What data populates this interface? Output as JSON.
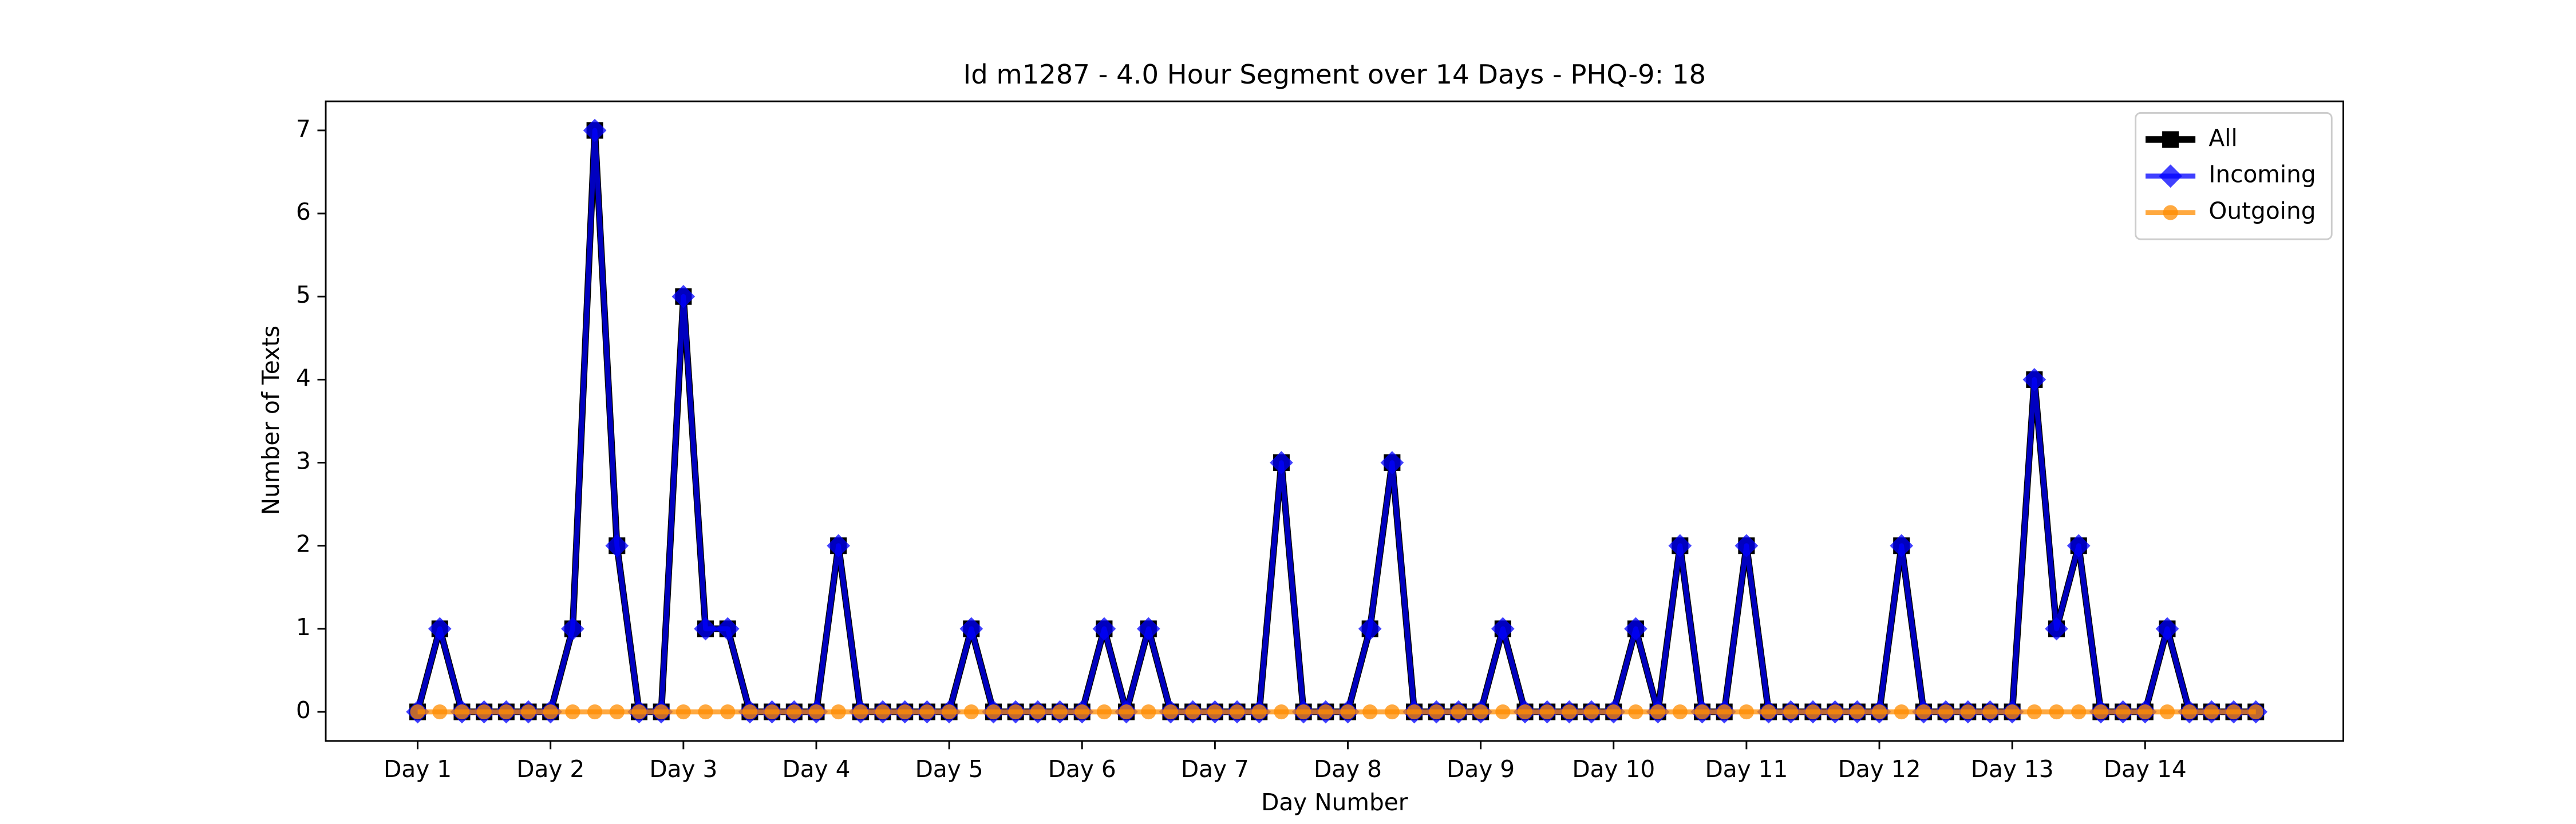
{
  "chart_data": {
    "type": "line",
    "title": "Id m1287 - 4.0 Hour Segment over 14 Days - PHQ-9: 18",
    "xlabel": "Day Number",
    "ylabel": "Number of Texts",
    "x": [
      0,
      1,
      2,
      3,
      4,
      5,
      6,
      7,
      8,
      9,
      10,
      11,
      12,
      13,
      14,
      15,
      16,
      17,
      18,
      19,
      20,
      21,
      22,
      23,
      24,
      25,
      26,
      27,
      28,
      29,
      30,
      31,
      32,
      33,
      34,
      35,
      36,
      37,
      38,
      39,
      40,
      41,
      42,
      43,
      44,
      45,
      46,
      47,
      48,
      49,
      50,
      51,
      52,
      53,
      54,
      55,
      56,
      57,
      58,
      59,
      60,
      61,
      62,
      63,
      64,
      65,
      66,
      67,
      68,
      69,
      70,
      71,
      72,
      73,
      74,
      75,
      76,
      77,
      78,
      79,
      80,
      81,
      82,
      83
    ],
    "series": [
      {
        "name": "All",
        "color": "#000000",
        "marker": "square",
        "values": [
          0,
          1,
          0,
          0,
          0,
          0,
          0,
          1,
          7,
          2,
          0,
          0,
          5,
          1,
          1,
          0,
          0,
          0,
          0,
          2,
          0,
          0,
          0,
          0,
          0,
          1,
          0,
          0,
          0,
          0,
          0,
          1,
          0,
          1,
          0,
          0,
          0,
          0,
          0,
          3,
          0,
          0,
          0,
          1,
          3,
          0,
          0,
          0,
          0,
          1,
          0,
          0,
          0,
          0,
          0,
          1,
          0,
          2,
          0,
          0,
          2,
          0,
          0,
          0,
          0,
          0,
          0,
          2,
          0,
          0,
          0,
          0,
          0,
          4,
          1,
          2,
          0,
          0,
          0,
          1,
          0,
          0,
          0,
          0
        ]
      },
      {
        "name": "Incoming",
        "color": "#0000ff",
        "marker": "diamond",
        "values": [
          0,
          1,
          0,
          0,
          0,
          0,
          0,
          1,
          7,
          2,
          0,
          0,
          5,
          1,
          1,
          0,
          0,
          0,
          0,
          2,
          0,
          0,
          0,
          0,
          0,
          1,
          0,
          0,
          0,
          0,
          0,
          1,
          0,
          1,
          0,
          0,
          0,
          0,
          0,
          3,
          0,
          0,
          0,
          1,
          3,
          0,
          0,
          0,
          0,
          1,
          0,
          0,
          0,
          0,
          0,
          1,
          0,
          2,
          0,
          0,
          2,
          0,
          0,
          0,
          0,
          0,
          0,
          2,
          0,
          0,
          0,
          0,
          0,
          4,
          1,
          2,
          0,
          0,
          0,
          1,
          0,
          0,
          0,
          0
        ]
      },
      {
        "name": "Outgoing",
        "color": "#ff8c00",
        "marker": "circle",
        "values": [
          0,
          0,
          0,
          0,
          0,
          0,
          0,
          0,
          0,
          0,
          0,
          0,
          0,
          0,
          0,
          0,
          0,
          0,
          0,
          0,
          0,
          0,
          0,
          0,
          0,
          0,
          0,
          0,
          0,
          0,
          0,
          0,
          0,
          0,
          0,
          0,
          0,
          0,
          0,
          0,
          0,
          0,
          0,
          0,
          0,
          0,
          0,
          0,
          0,
          0,
          0,
          0,
          0,
          0,
          0,
          0,
          0,
          0,
          0,
          0,
          0,
          0,
          0,
          0,
          0,
          0,
          0,
          0,
          0,
          0,
          0,
          0,
          0,
          0,
          0,
          0,
          0,
          0,
          0,
          0,
          0,
          0,
          0,
          0
        ]
      }
    ],
    "xlim": [
      -4.15,
      86.95
    ],
    "xticks": [
      {
        "value": 0,
        "label": "Day 1"
      },
      {
        "value": 6,
        "label": "Day 2"
      },
      {
        "value": 12,
        "label": "Day 3"
      },
      {
        "value": 18,
        "label": "Day 4"
      },
      {
        "value": 24,
        "label": "Day 5"
      },
      {
        "value": 30,
        "label": "Day 6"
      },
      {
        "value": 36,
        "label": "Day 7"
      },
      {
        "value": 42,
        "label": "Day 8"
      },
      {
        "value": 48,
        "label": "Day 9"
      },
      {
        "value": 54,
        "label": "Day 10"
      },
      {
        "value": 60,
        "label": "Day 11"
      },
      {
        "value": 66,
        "label": "Day 12"
      },
      {
        "value": 72,
        "label": "Day 13"
      },
      {
        "value": 78,
        "label": "Day 14"
      }
    ],
    "ylim": [
      -0.35,
      7.35
    ],
    "yticks": [
      0,
      1,
      2,
      3,
      4,
      5,
      6,
      7
    ],
    "legend": "upper right",
    "grid": false
  }
}
